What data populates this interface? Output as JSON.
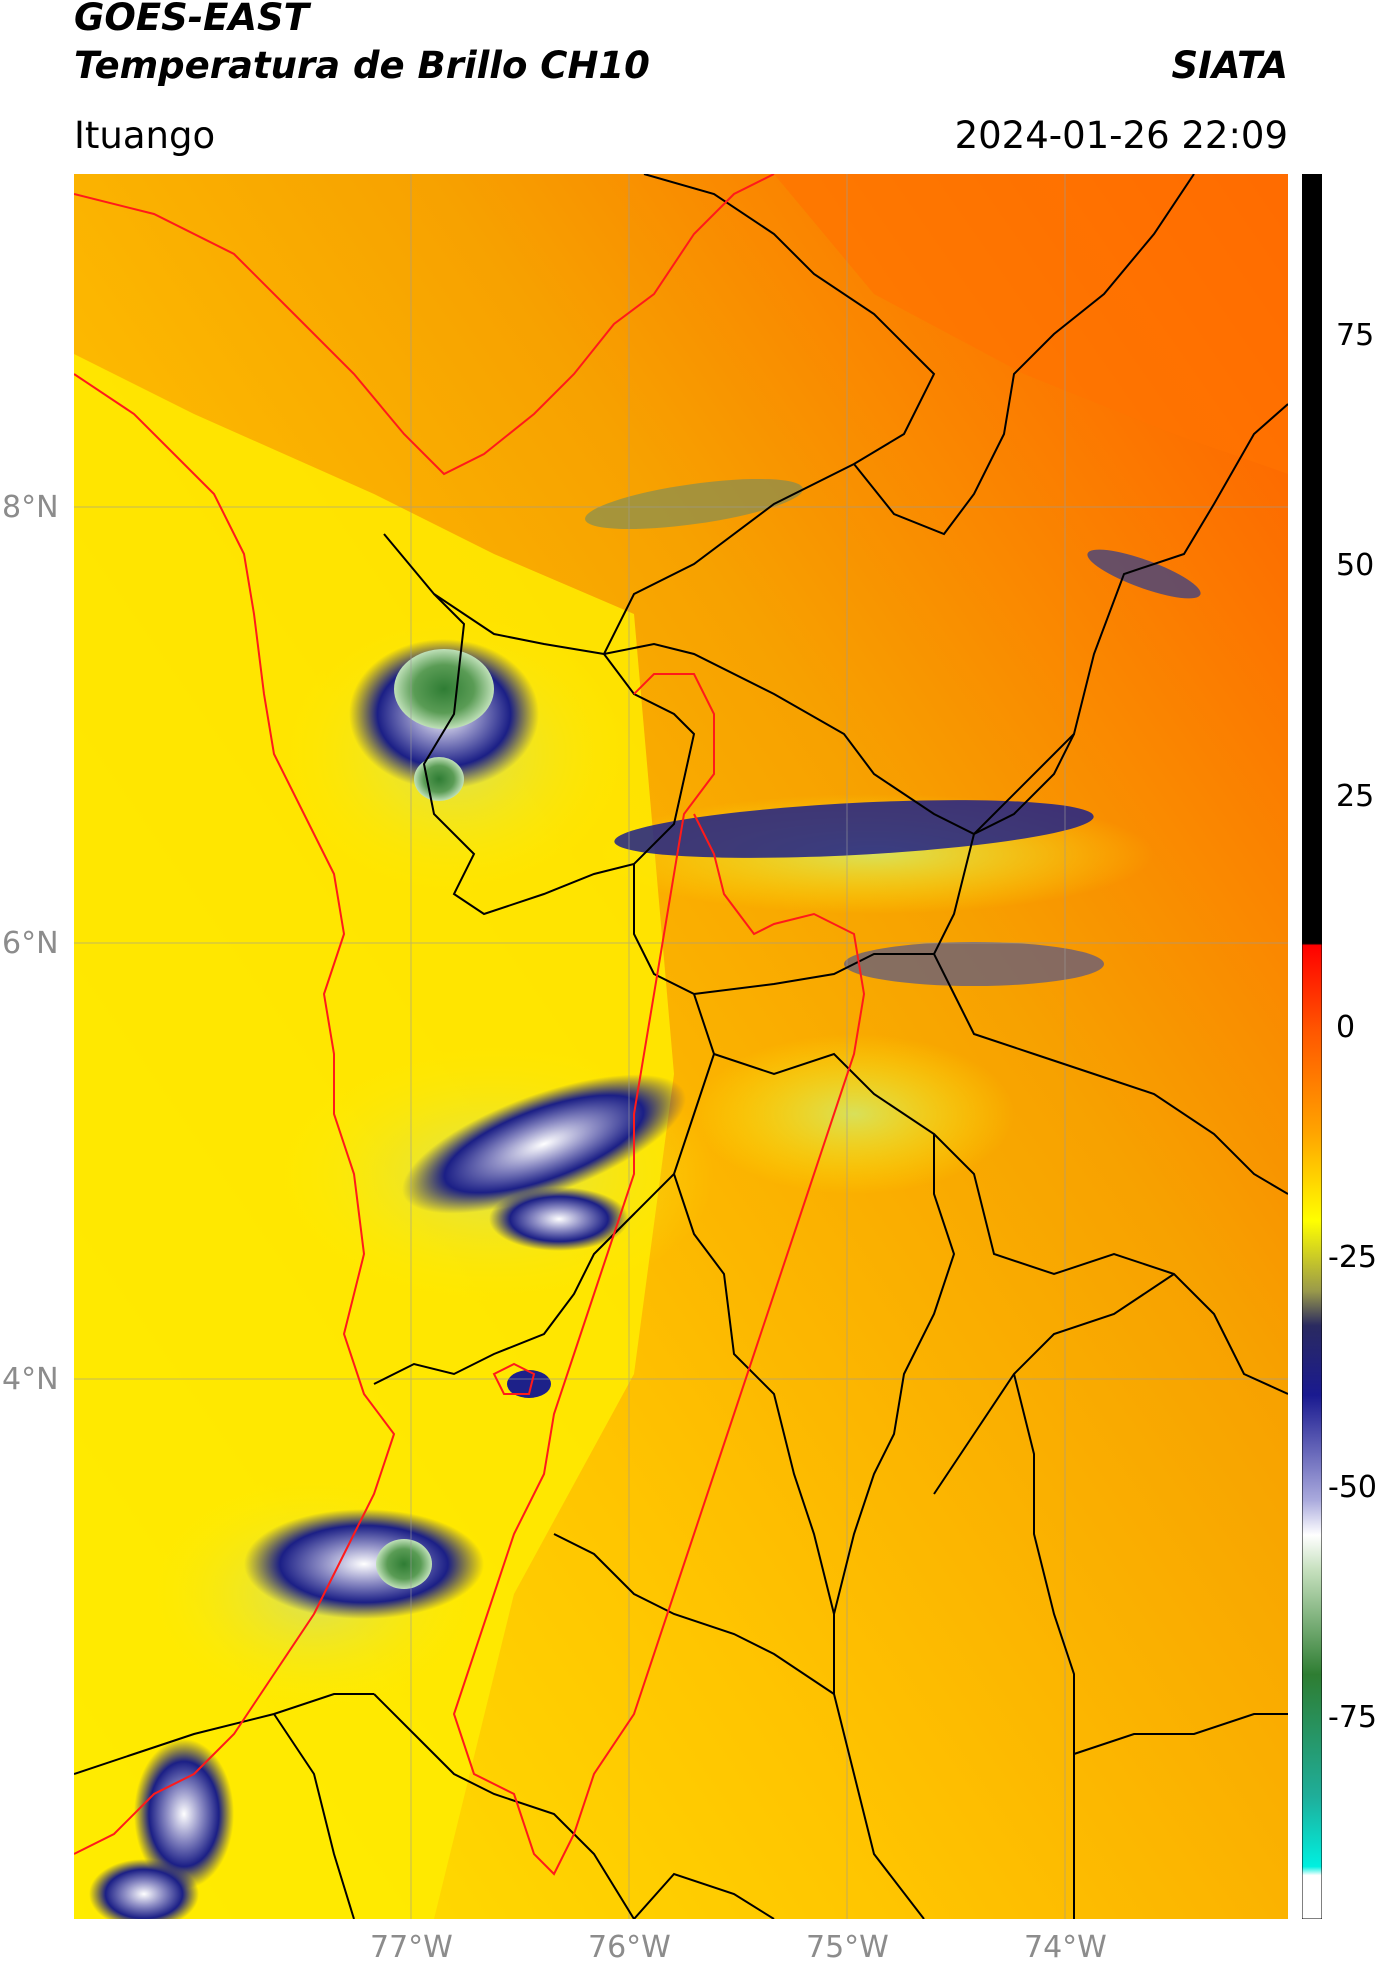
{
  "header": {
    "satellite": "GOES-EAST",
    "product": "Temperatura de Brillo CH10",
    "organization": "SIATA",
    "region": "Ituango",
    "timestamp": "2024-01-26 22:09"
  },
  "map": {
    "lat_labels": [
      "8°N",
      "6°N",
      "4°N"
    ],
    "lon_labels": [
      "77°W",
      "76°W",
      "75°W",
      "74°W"
    ],
    "background_color": "#f5a200",
    "border_colors": {
      "department": "#000000",
      "region": "#ff0000"
    }
  },
  "colorbar": {
    "ticks": [
      "75",
      "50",
      "25",
      "0",
      "-25",
      "-50",
      "-75"
    ],
    "colors": [
      "#000000",
      "#ff0000",
      "#ff7f00",
      "#ffff00",
      "#1a1a80",
      "#ffffff",
      "#2e7d32",
      "#00e5d0"
    ]
  }
}
